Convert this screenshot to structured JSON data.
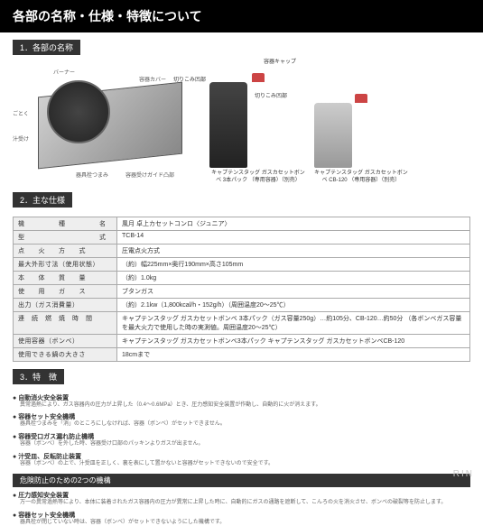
{
  "header": "各部の名称・仕様・特徴について",
  "section1": {
    "label": "1．各部の名称"
  },
  "parts": {
    "gotoku": "ごとく",
    "burner": "バーナー",
    "juice": "汁受け",
    "cover": "容器カバー",
    "knob": "器具栓つまみ",
    "guide": "容器受けガイド凸部",
    "cap": "容器キャップ",
    "notch1": "切りこみ凹部",
    "notch2": "切りこみ凹部"
  },
  "canisters": {
    "main_caption": "キャプテンスタッグ\nガスカセットボンベ\n3本パック\n（専用容器）（別売）",
    "sub_caption": "キャプテンスタッグ\nガスカセットボンベ\nCB-120\n（専用容器）（別売）"
  },
  "section2": {
    "label": "2．主な仕様"
  },
  "specs": [
    {
      "k": "機　　　　　種　　　　　名",
      "v": "風月 卓上カセットコンロ〈ジュニア〉"
    },
    {
      "k": "型　　　　　　　　　　　式",
      "v": "TCB-14"
    },
    {
      "k": "点　　火　　方　　式",
      "v": "圧電点火方式"
    },
    {
      "k": "最大外形寸法（使用状態）",
      "v": "（約）幅225mm×奥行190mm×高さ105mm"
    },
    {
      "k": "本　　体　　質　　量",
      "v": "（約）1.0kg"
    },
    {
      "k": "使　　用　　ガ　　ス",
      "v": "ブタンガス"
    },
    {
      "k": "出力（ガス消費量）",
      "v": "（約）2.1kw（1,800kcal/h・152g/h）（周囲温度20～25℃）"
    },
    {
      "k": "連　続　燃　焼　時　間",
      "v": "キャプテンスタッグ ガスカセットボンベ\n3本パック（ガス容量250g）…約105分、CB-120…約50分\n（各ボンベガス容量を最大火力で使用した時の実測値。周囲温度20～25℃）"
    },
    {
      "k": "使用容器（ボンベ）",
      "v": "キャプテンスタッグ ガスカセットボンベ3本パック\nキャプテンスタッグ ガスカセットボンベCB-120"
    },
    {
      "k": "使用できる鍋の大きさ",
      "v": "18cmまで"
    }
  ],
  "section3": {
    "label": "3．特　徴"
  },
  "features": [
    {
      "t": "自動消火安全装置",
      "d": "異常過熱により、ガス容器内の圧力が上昇した（0.4～0.6MPa）とき、圧力感知安全装置が作動し、自動的に火が消えます。"
    },
    {
      "t": "容器セット安全機構",
      "d": "器具栓つまみを「消」のところにしなければ、容器（ボンベ）がセットできません。"
    },
    {
      "t": "容器受口ガス漏れ防止機構",
      "d": "容器（ボンベ）を外した時、容器受け口部のパッキンよりガスが出ません。"
    },
    {
      "t": "汁受皿、反転防止装置",
      "d": "容器（ボンベ）の上で、汁受皿を正しく、裏を表にして置かないと容器がセットできないので安全です。"
    }
  ],
  "danger": {
    "label": "危険防止のための2つの機構"
  },
  "danger_items": [
    {
      "t": "圧力感知安全装置",
      "d": "万一の異常過熱等により、本体に装着されたガス容器内の圧力が異常に上昇した時に、自動的にガスの通路を遮断して、こんろの火を消火させ、ボンベの破裂等を防止します。"
    },
    {
      "t": "容器セット安全機構",
      "d": "器具栓が閉じていない時は、容器（ボンベ）がセットできないようにした機構です。"
    }
  ],
  "watermark": "RIN",
  "colors": {
    "header_bg": "#000000",
    "header_fg": "#ffffff",
    "section_bg": "#333333",
    "table_border": "#aaaaaa",
    "table_key_bg": "#eeeeee",
    "cap": "#cc4444"
  }
}
